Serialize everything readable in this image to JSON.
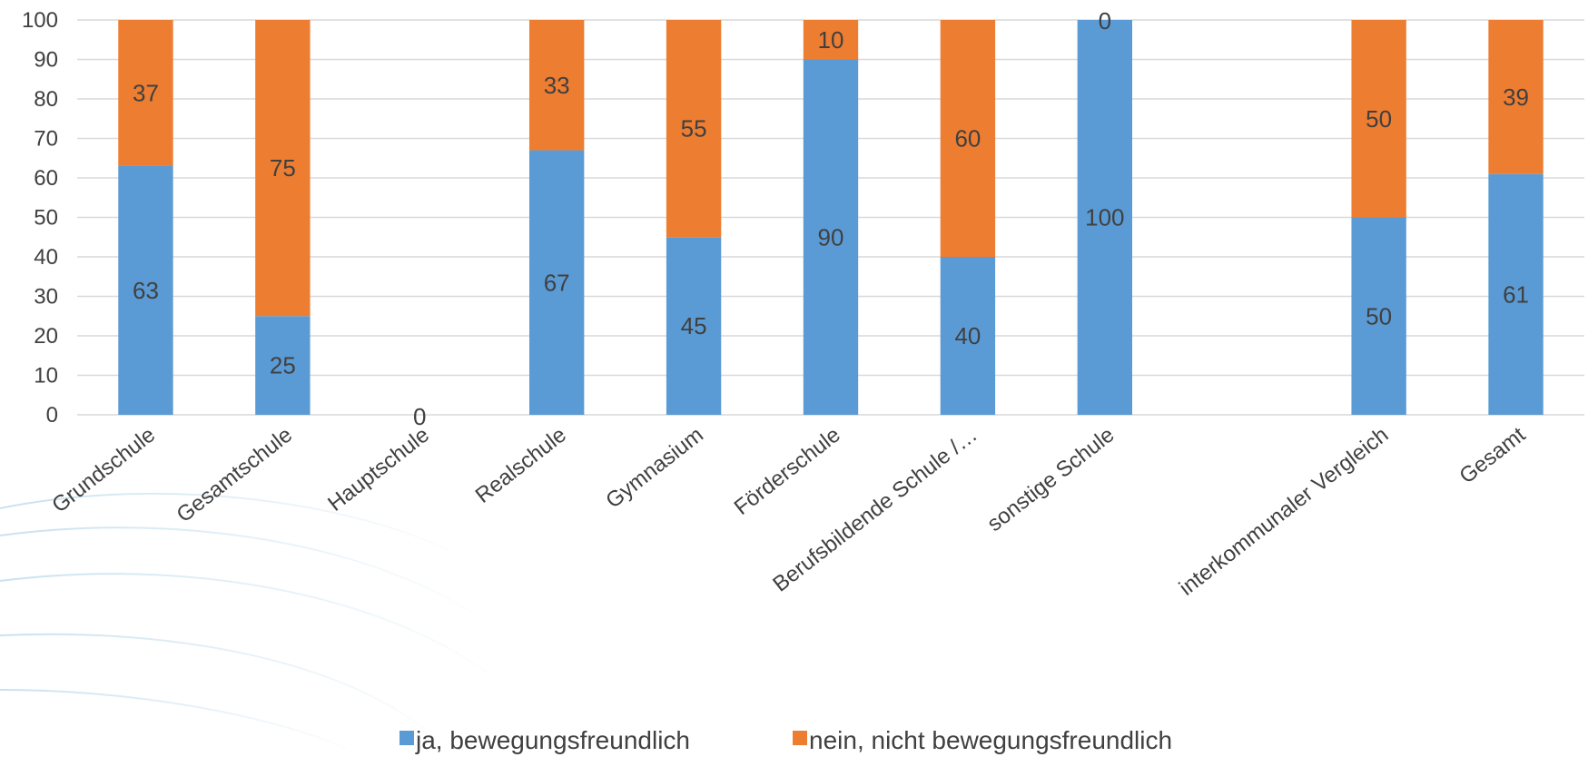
{
  "chart_data": {
    "type": "bar",
    "stacked": true,
    "categories": [
      "Grundschule",
      "Gesamtschule",
      "Hauptschule",
      "Realschule",
      "Gymnasium",
      "Förderschule",
      "Berufsbildende Schule /…",
      "sonstige Schule",
      "",
      "interkommunaler Vergleich",
      "Gesamt"
    ],
    "series": [
      {
        "name": "ja, bewegungsfreundlich",
        "color": "#5b9bd5",
        "values": [
          63,
          25,
          0,
          67,
          45,
          90,
          40,
          100,
          null,
          50,
          61
        ],
        "labels": [
          "63",
          "25",
          "0",
          "67",
          "45",
          "90",
          "40",
          "100",
          "",
          "50",
          "61"
        ]
      },
      {
        "name": "nein, nicht bewegungsfreundlich",
        "color": "#ed7d31",
        "values": [
          37,
          75,
          0,
          33,
          55,
          10,
          60,
          0,
          null,
          50,
          39
        ],
        "labels": [
          "37",
          "75",
          "",
          "33",
          "55",
          "10",
          "60",
          "0",
          "",
          "50",
          "39"
        ]
      }
    ],
    "ylim": [
      0,
      100
    ],
    "yticks": [
      "0",
      "10",
      "20",
      "30",
      "40",
      "50",
      "60",
      "70",
      "80",
      "90",
      "100"
    ],
    "grid": true,
    "legend_position": "bottom"
  }
}
